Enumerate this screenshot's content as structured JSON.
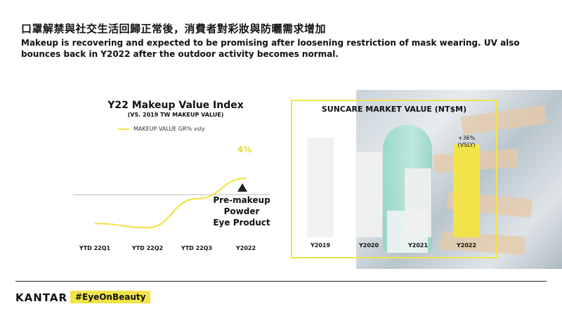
{
  "header": {
    "title_zh": "口罩解禁與社交生活回歸正常後，消費者對彩妝與防曬需求增加",
    "subtitle": "Makeup is recovering and expected to be promising after loosening restriction of mask wearing. UV also bounces back in Y2022 after the outdoor activity becomes normal."
  },
  "colors": {
    "accent": "#f2e34b",
    "bar": "#f0f0f0"
  },
  "chart_data": [
    {
      "type": "line",
      "title": "Y22 Makeup Value Index",
      "subtitle": "(VS. 2019 TW MAKEUP VALUE)",
      "categories": [
        "YTD 22Q1",
        "YTD 22Q2",
        "YTD 22Q3",
        "Y2022"
      ],
      "series": [
        {
          "name": "MAKEUP VALUE GR% vsly",
          "values": [
            -7,
            -8,
            -1,
            4
          ]
        }
      ],
      "end_label": "4%",
      "ylim": [
        -9,
        5
      ],
      "baseline": 0,
      "grid": false,
      "annotation": {
        "icon": "triangle-up-icon",
        "lines": [
          "Pre-makeup",
          "Powder",
          "Eye Product"
        ]
      }
    },
    {
      "type": "bar",
      "title": "SUNCARE MARKET VALUE (NT$M)",
      "categories": [
        "Y2019",
        "Y2020",
        "Y2021",
        "Y2022"
      ],
      "values": [
        124,
        106,
        86,
        116
      ],
      "highlight_index": 3,
      "annotation": {
        "lines": [
          "+36%",
          "(VSLY)"
        ]
      },
      "ylim": [
        0,
        140
      ]
    }
  ],
  "footer": {
    "logo": "KANTAR",
    "hashtag": "#EyeOnBeauty"
  }
}
